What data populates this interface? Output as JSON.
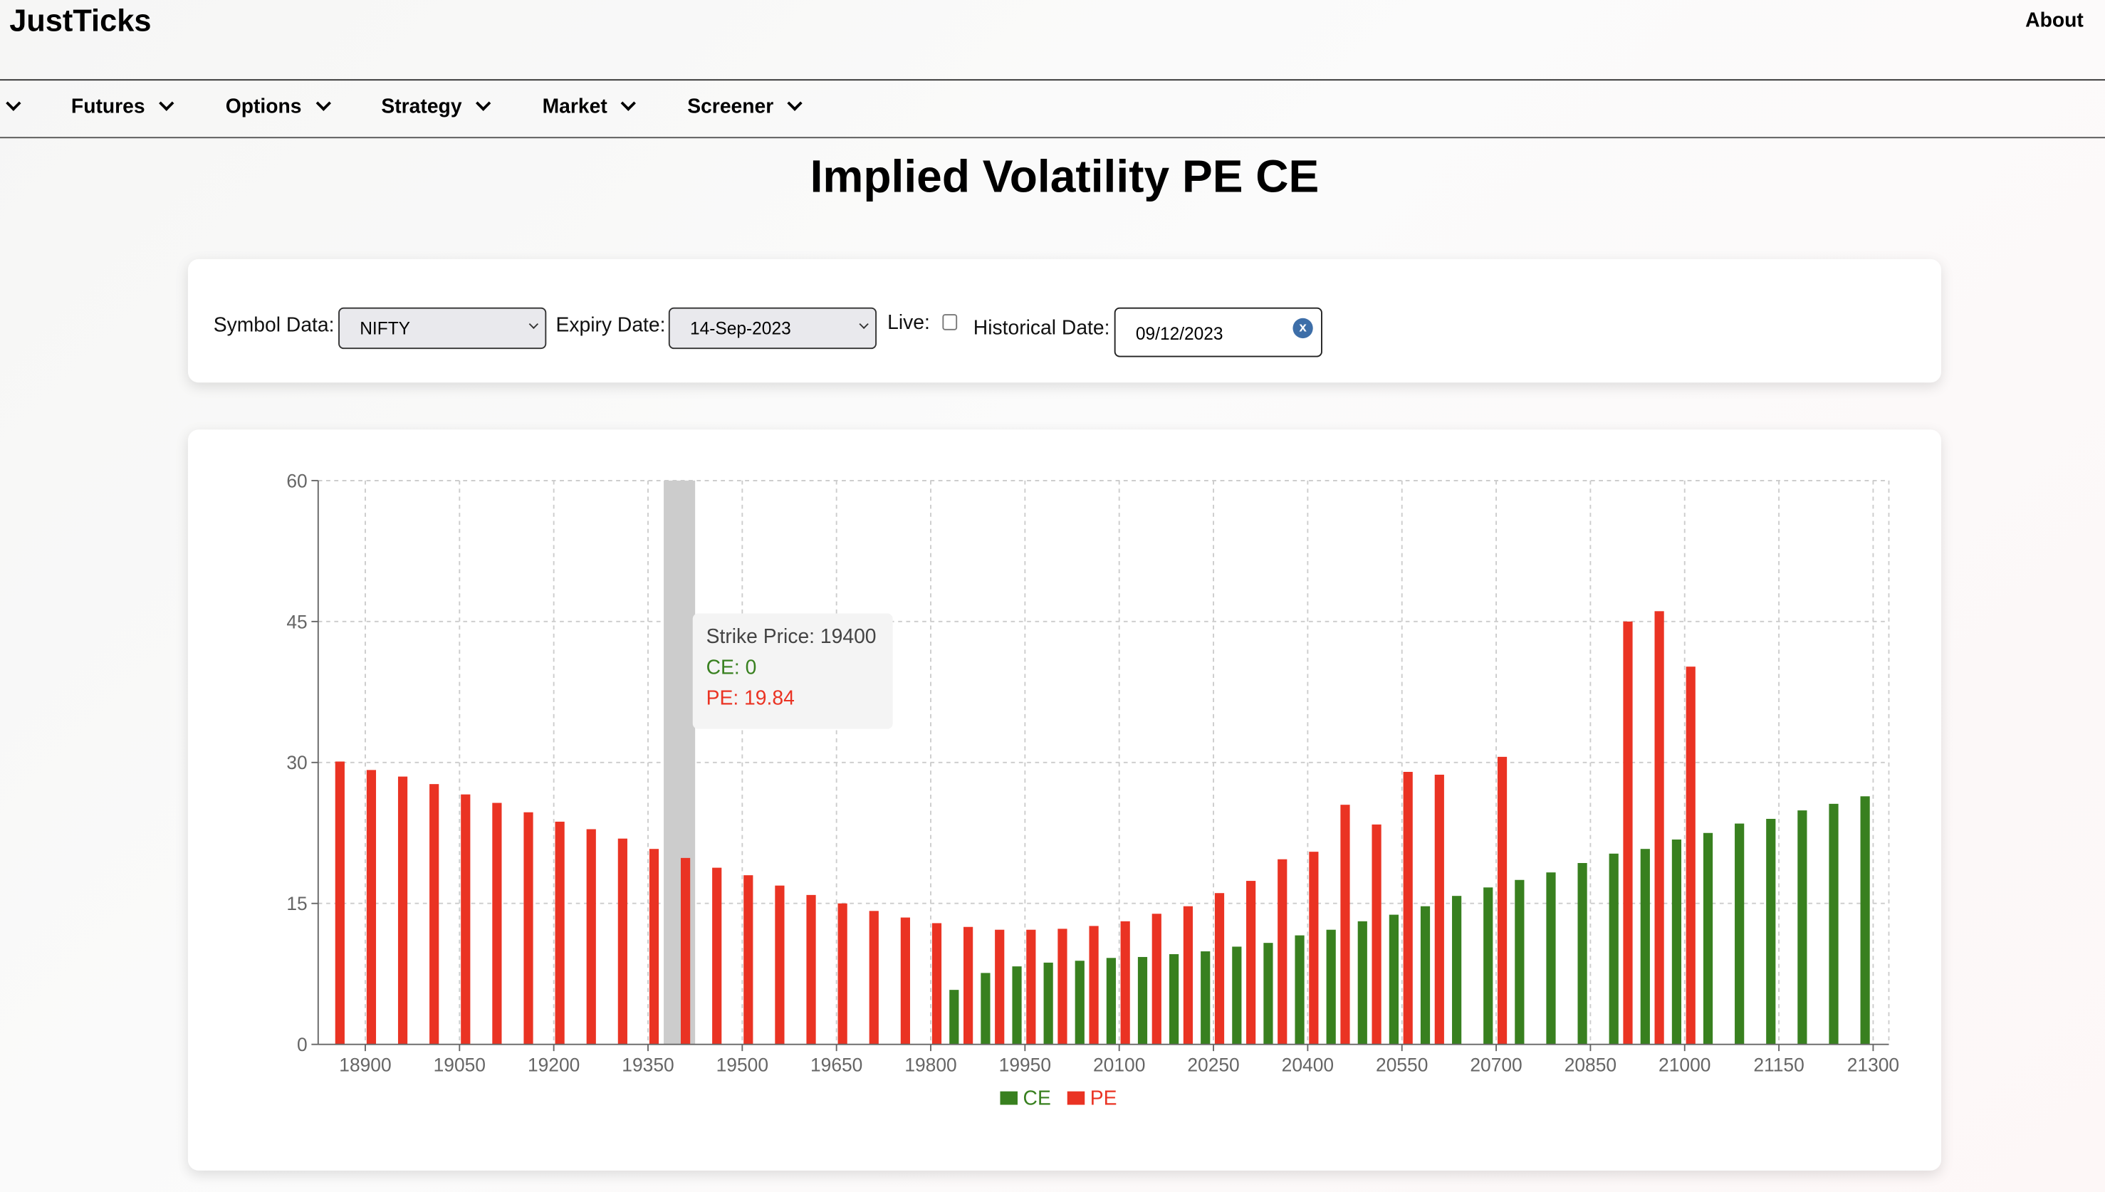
{
  "header": {
    "logo": "JustTicks",
    "about": "About"
  },
  "nav": {
    "items": [
      {
        "label": ""
      },
      {
        "label": "Futures"
      },
      {
        "label": "Options"
      },
      {
        "label": "Strategy"
      },
      {
        "label": "Market"
      },
      {
        "label": "Screener"
      }
    ]
  },
  "page_title": "Implied Volatility PE CE",
  "controls": {
    "symbol_label": "Symbol Data:",
    "symbol_value": "NIFTY",
    "expiry_label": "Expiry Date:",
    "expiry_value": "14-Sep-2023",
    "live_label": "Live:",
    "live_checked": false,
    "historical_label": "Historical Date:",
    "historical_value": "09/12/2023",
    "clear_icon": "x"
  },
  "tooltip": {
    "strike": "Strike Price: 19400",
    "ce": "CE: 0",
    "pe": "PE: 19.84"
  },
  "colors": {
    "ce": "#38801f",
    "pe": "#ea3323",
    "highlight": "#cccccc"
  },
  "chart_data": {
    "type": "bar",
    "ylim": [
      0,
      60
    ],
    "yticks": [
      0,
      15,
      30,
      45,
      60
    ],
    "grid": true,
    "legend_placement": "bottom",
    "highlighted_category": 19400,
    "xtick_labels": [
      "18900",
      "19050",
      "19200",
      "19350",
      "19500",
      "19650",
      "19800",
      "19950",
      "20100",
      "20250",
      "20400",
      "20550",
      "20700",
      "20850",
      "21000",
      "21150",
      "21300"
    ],
    "categories": [
      18850,
      18900,
      18950,
      19000,
      19050,
      19100,
      19150,
      19200,
      19250,
      19300,
      19350,
      19400,
      19450,
      19500,
      19550,
      19600,
      19650,
      19700,
      19750,
      19800,
      19850,
      19900,
      19950,
      20000,
      20050,
      20100,
      20150,
      20200,
      20250,
      20300,
      20350,
      20400,
      20450,
      20500,
      20550,
      20600,
      20650,
      20700,
      20750,
      20800,
      20850,
      20900,
      20950,
      21000,
      21050,
      21100,
      21150,
      21200,
      21250,
      21300
    ],
    "series": [
      {
        "name": "CE",
        "values": [
          0,
          0,
          0,
          0,
          0,
          0,
          0,
          0,
          0,
          0,
          0,
          0,
          0,
          0,
          0,
          0,
          0,
          0,
          0,
          0,
          5.8,
          7.6,
          8.3,
          8.7,
          8.9,
          9.2,
          9.3,
          9.6,
          9.9,
          10.4,
          10.8,
          11.6,
          12.2,
          13.1,
          13.8,
          14.7,
          15.8,
          16.7,
          17.5,
          18.3,
          19.3,
          20.3,
          20.8,
          21.8,
          22.5,
          23.5,
          24.0,
          24.9,
          25.6,
          26.4
        ]
      },
      {
        "name": "PE",
        "values": [
          30.1,
          29.2,
          28.5,
          27.7,
          26.6,
          25.7,
          24.7,
          23.7,
          22.9,
          21.9,
          20.8,
          19.84,
          18.8,
          18.0,
          16.9,
          15.9,
          15.0,
          14.2,
          13.5,
          12.9,
          12.5,
          12.2,
          12.2,
          12.3,
          12.6,
          13.1,
          13.9,
          14.7,
          16.1,
          17.4,
          19.7,
          20.5,
          25.5,
          23.4,
          29.0,
          28.7,
          0,
          30.6,
          0,
          0,
          0,
          45.0,
          46.1,
          40.2,
          0,
          0,
          0,
          0,
          0,
          0
        ]
      }
    ]
  }
}
